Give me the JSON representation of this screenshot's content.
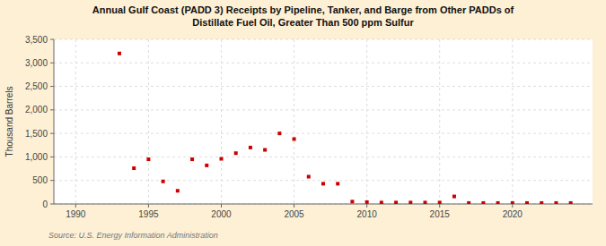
{
  "chart_data": {
    "type": "scatter",
    "title": "Annual Gulf Coast (PADD 3) Receipts by Pipeline, Tanker, and Barge from Other PADDs of\nDistillate Fuel Oil, Greater Than 500 ppm Sulfur",
    "ylabel": "Thousand Barrels",
    "source": "Source: U.S. Energy Information Administration",
    "color": "#cc0000",
    "marker": "square",
    "grid": true,
    "xlim": [
      1988.5,
      2025.5
    ],
    "ylim": [
      0,
      3500
    ],
    "xticks": [
      1990,
      1995,
      2000,
      2005,
      2010,
      2015,
      2020
    ],
    "yticks": [
      0,
      500,
      {
        "value": 1000,
        "label": "1,000"
      },
      {
        "value": 1500,
        "label": "1,500"
      },
      {
        "value": 2000,
        "label": "2,000"
      },
      {
        "value": 2500,
        "label": "2,500"
      },
      {
        "value": 3000,
        "label": "3,000"
      },
      {
        "value": 3500,
        "label": "3,500"
      }
    ],
    "x": [
      1993,
      1994,
      1995,
      1996,
      1997,
      1998,
      1999,
      2000,
      2001,
      2002,
      2003,
      2004,
      2005,
      2006,
      2007,
      2008,
      2009,
      2010,
      2011,
      2012,
      2013,
      2014,
      2015,
      2016,
      2017,
      2018,
      2019,
      2020,
      2021,
      2022,
      2023,
      2024
    ],
    "values": [
      3200,
      760,
      950,
      480,
      280,
      950,
      820,
      960,
      1080,
      1200,
      1150,
      1500,
      1380,
      580,
      430,
      430,
      50,
      40,
      30,
      30,
      30,
      30,
      30,
      160,
      20,
      20,
      20,
      20,
      20,
      20,
      20,
      20
    ]
  }
}
